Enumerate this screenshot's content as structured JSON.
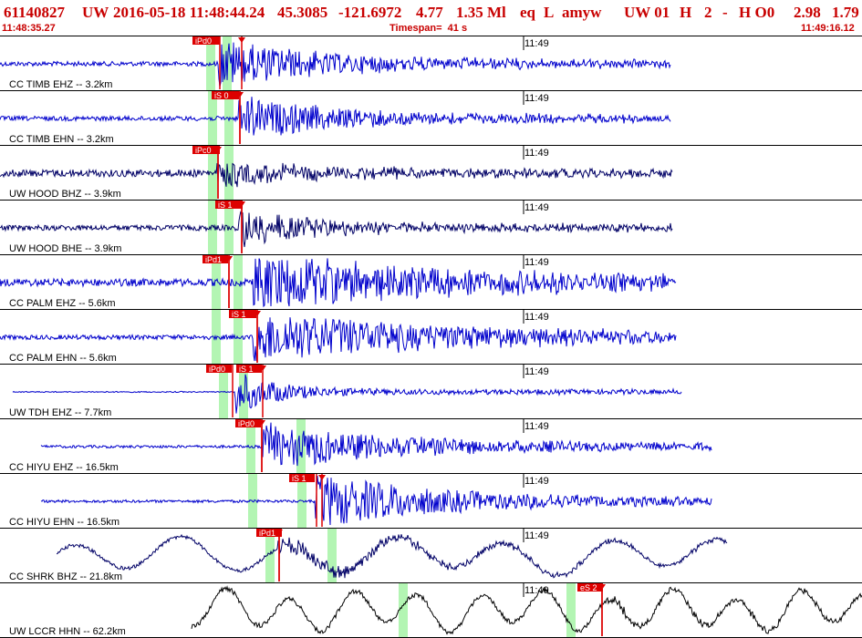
{
  "header": {
    "event_id": "61140827",
    "network": "UW",
    "origin_time": "2016-05-18 11:48:44.24",
    "lat": "45.3085",
    "lon": "-121.6972",
    "depth": "4.77",
    "magnitude": "1.35 Ml",
    "etype": "eq",
    "gtype": "L",
    "author": "amyw",
    "solution": "UW 01",
    "quality": "H",
    "nph": "2",
    "flags": "-",
    "hq": "H O0",
    "rms": "2.98",
    "erh": "1.79"
  },
  "subheader": {
    "start_time": "11:48:35.27",
    "timespan": "Timespan=  41 s",
    "end_time": "11:49:16.12"
  },
  "colors": {
    "header_text": "#c80000",
    "trace_blue": "#0000cc",
    "trace_navy": "#000066",
    "trace_black": "#000000",
    "pick_red": "#dd0000",
    "window_green": "#b3f5b3"
  },
  "channels": [
    {
      "label": "CC TIMB EHZ -- 3.2km",
      "minute_label": "11:49",
      "pick": "iPd0",
      "style": "blue"
    },
    {
      "label": "CC TIMB EHN -- 3.2km",
      "minute_label": "11:49",
      "pick": "iS 0",
      "style": "blue"
    },
    {
      "label": "UW HOOD BHZ -- 3.9km",
      "minute_label": "11:49",
      "pick": "iPc0",
      "style": "navy"
    },
    {
      "label": "UW HOOD BHE -- 3.9km",
      "minute_label": "11:49",
      "pick": "iS 1",
      "style": "navy"
    },
    {
      "label": "CC PALM EHZ -- 5.6km",
      "minute_label": "11:49",
      "pick": "iPd1",
      "style": "blue"
    },
    {
      "label": "CC PALM EHN -- 5.6km",
      "minute_label": "11:49",
      "pick": "iS 1",
      "style": "blue"
    },
    {
      "label": "UW TDH EHZ -- 7.7km",
      "minute_label": "11:49",
      "pick": "iPd0",
      "pick2": "iS 1",
      "style": "blue"
    },
    {
      "label": "CC HIYU EHZ -- 16.5km",
      "minute_label": "11:49",
      "pick": "iPd0",
      "style": "blue"
    },
    {
      "label": "CC HIYU EHN -- 16.5km",
      "minute_label": "11:49",
      "pick": "iS 1",
      "style": "blue"
    },
    {
      "label": "CC SHRK BHZ -- 21.8km",
      "minute_label": "11:49",
      "pick": "iPd1",
      "style": "navy"
    },
    {
      "label": "UW LCCR HHN -- 62.2km",
      "minute_label": "11:49",
      "pick": "eS 2",
      "style": "black"
    }
  ]
}
